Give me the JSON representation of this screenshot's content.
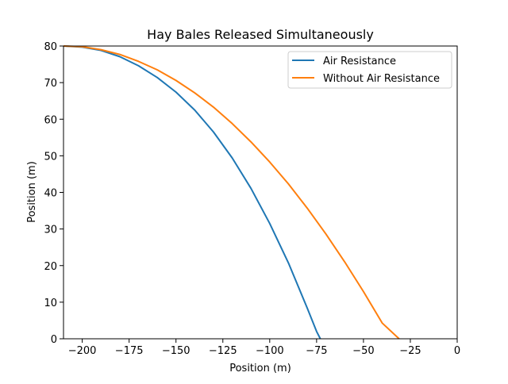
{
  "chart_data": {
    "type": "line",
    "title": "Hay Bales Released Simultaneously",
    "xlabel": "Position (m)",
    "ylabel": "Position (m)",
    "xlim": [
      -210,
      0
    ],
    "ylim": [
      0,
      80
    ],
    "xticks": [
      -200,
      -175,
      -150,
      -125,
      -100,
      -75,
      -50,
      -25,
      0
    ],
    "xtick_labels": [
      "−200",
      "−175",
      "−150",
      "−125",
      "−100",
      "−75",
      "−50",
      "−25",
      "0"
    ],
    "yticks": [
      0,
      10,
      20,
      30,
      40,
      50,
      60,
      70,
      80
    ],
    "ytick_labels": [
      "0",
      "10",
      "20",
      "30",
      "40",
      "50",
      "60",
      "70",
      "80"
    ],
    "grid": false,
    "legend_position": "top-right",
    "series": [
      {
        "name": "Air Resistance",
        "color": "#1f77b4",
        "x": [
          -210,
          -200,
          -190,
          -180,
          -170,
          -160,
          -150,
          -140,
          -130,
          -120,
          -110,
          -100,
          -90,
          -80,
          -75,
          -73
        ],
        "y": [
          80,
          79.7,
          78.8,
          77.1,
          74.6,
          71.4,
          67.4,
          62.5,
          56.5,
          49.4,
          41.1,
          31.5,
          20.7,
          8.4,
          2.0,
          0
        ]
      },
      {
        "name": "Without Air Resistance",
        "color": "#ff7f0e",
        "x": [
          -210,
          -200,
          -190,
          -180,
          -170,
          -160,
          -150,
          -140,
          -130,
          -120,
          -110,
          -100,
          -90,
          -80,
          -70,
          -60,
          -50,
          -40,
          -31
        ],
        "y": [
          80,
          79.8,
          79.0,
          77.7,
          75.8,
          73.5,
          70.6,
          67.2,
          63.3,
          58.8,
          53.8,
          48.3,
          42.3,
          35.7,
          28.6,
          21.0,
          12.9,
          4.3,
          0
        ]
      }
    ]
  }
}
